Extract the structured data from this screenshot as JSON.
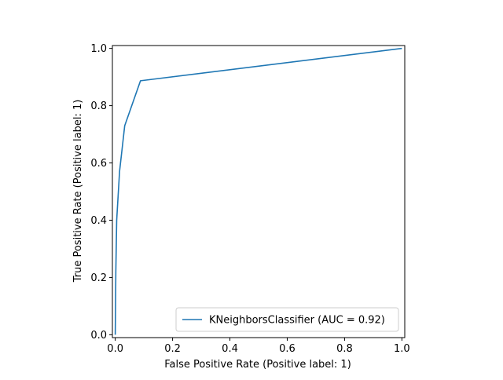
{
  "chart_data": {
    "type": "line",
    "title": "",
    "xlabel": "False Positive Rate (Positive label: 1)",
    "ylabel": "True Positive Rate (Positive label: 1)",
    "xlim": [
      -0.01,
      1.01
    ],
    "ylim": [
      -0.01,
      1.01
    ],
    "xticks": [
      0.0,
      0.2,
      0.4,
      0.6,
      0.8,
      1.0
    ],
    "xtick_labels": [
      "0.0",
      "0.2",
      "0.4",
      "0.6",
      "0.8",
      "1.0"
    ],
    "yticks": [
      0.0,
      0.2,
      0.4,
      0.6,
      0.8,
      1.0
    ],
    "ytick_labels": [
      "0.0",
      "0.2",
      "0.4",
      "0.6",
      "0.8",
      "1.0"
    ],
    "grid": false,
    "legend_position": "lower-right",
    "series": [
      {
        "name": "KNeighborsClassifier (AUC = 0.92)",
        "color": "#1f77b4",
        "x": [
          0.0,
          0.002,
          0.005,
          0.015,
          0.033,
          0.088,
          1.0
        ],
        "y": [
          0.0,
          0.22,
          0.4,
          0.57,
          0.73,
          0.887,
          1.0
        ]
      }
    ]
  }
}
